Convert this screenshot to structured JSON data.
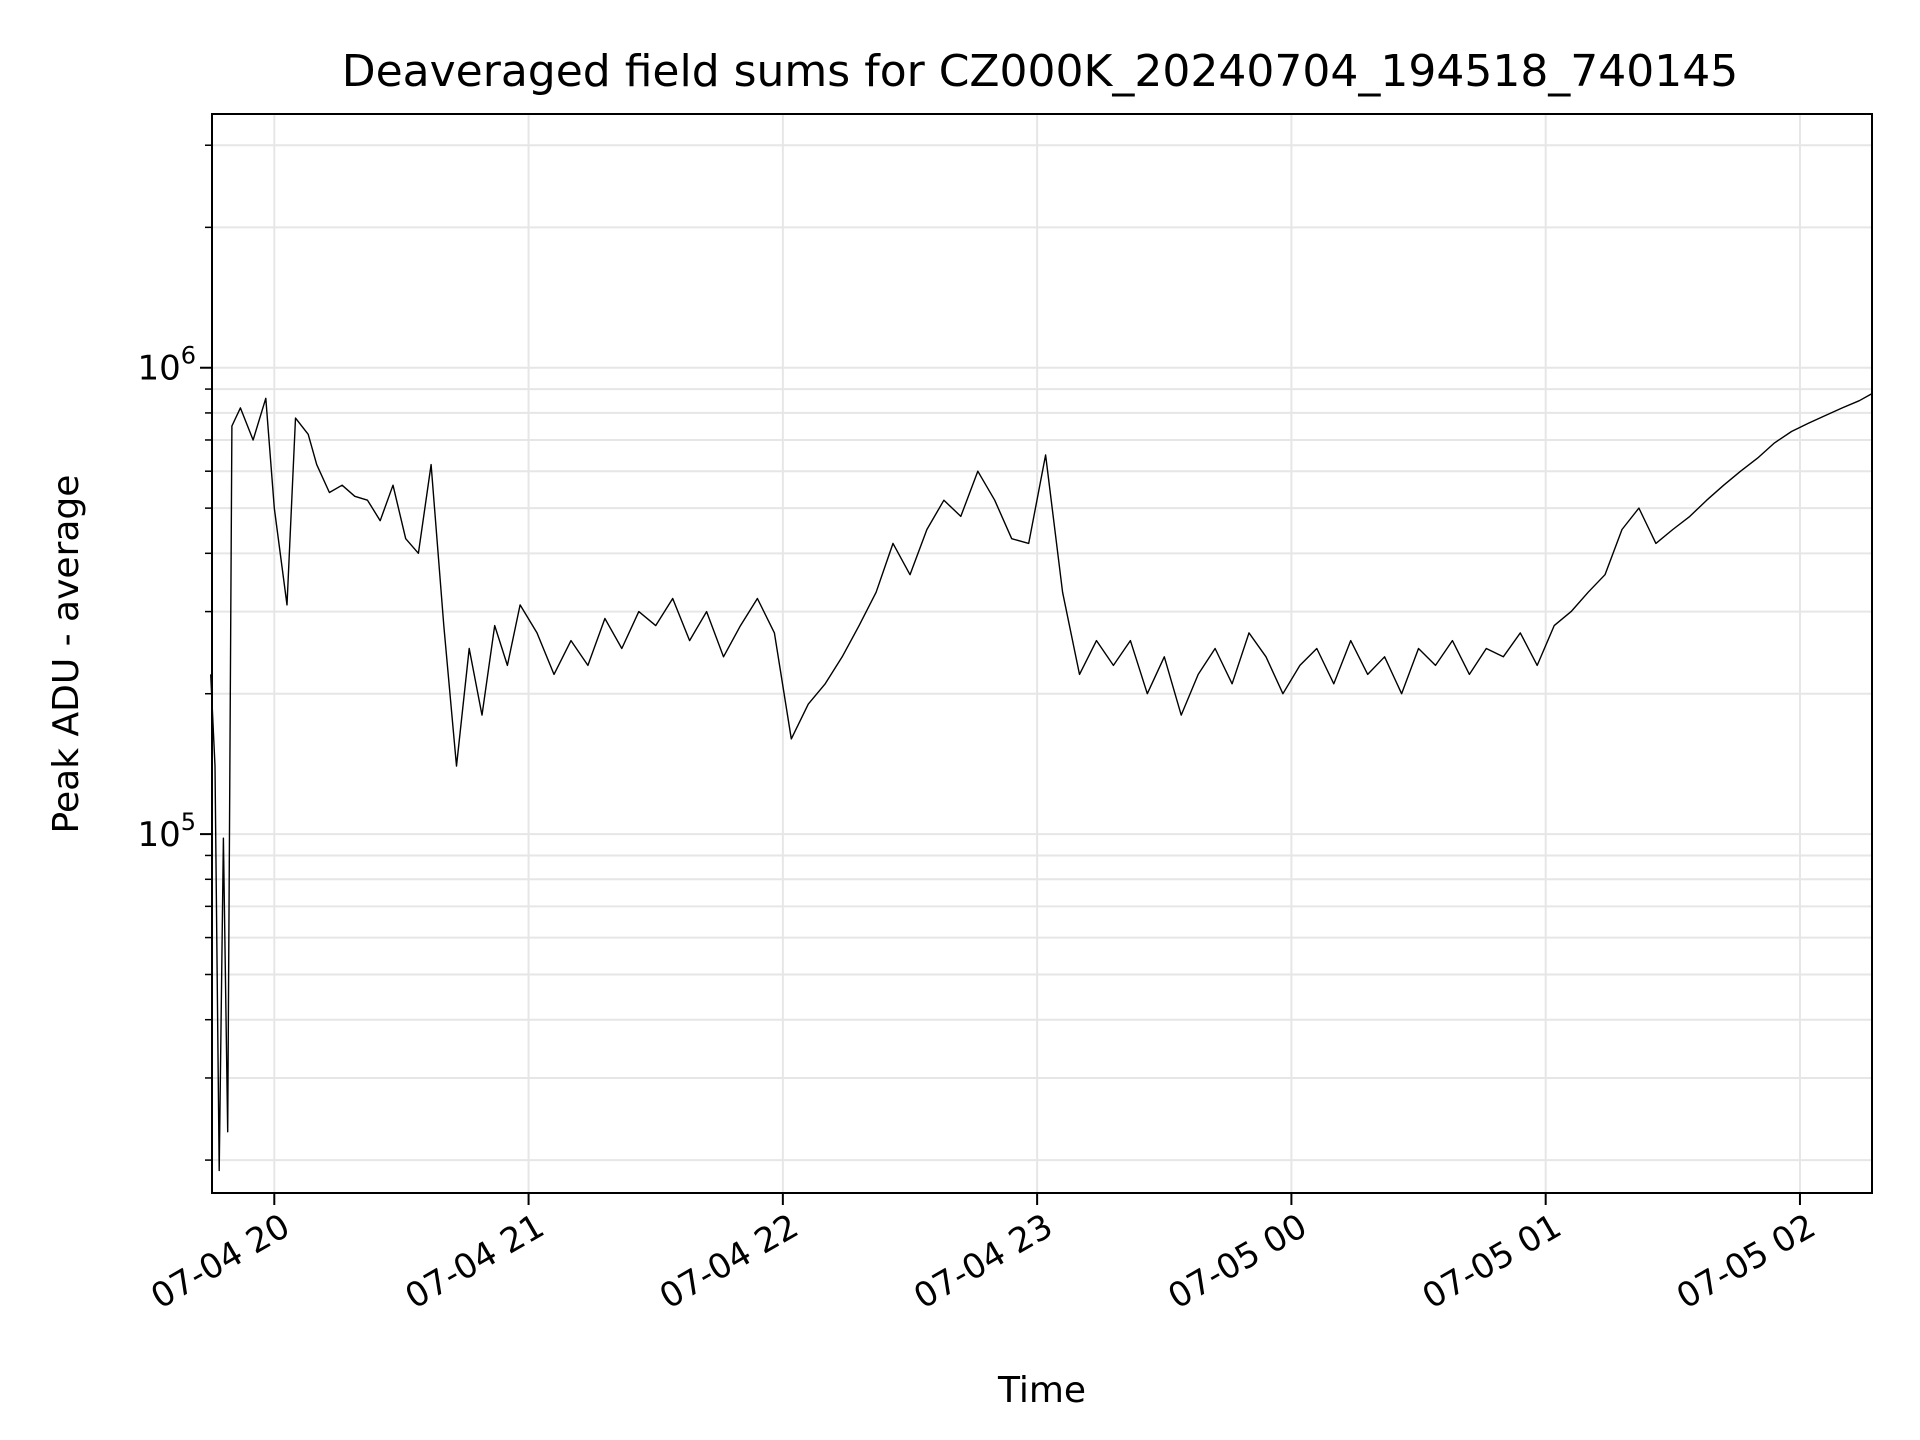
{
  "chart_data": {
    "type": "line",
    "title": "Deaveraged field sums for CZ000K_20240704_194518_740145",
    "xlabel": "Time",
    "ylabel": "Peak ADU - average",
    "yscale": "log",
    "xlim": [
      "2024-07-04 19:45:18",
      "2024-07-05 02:17:00"
    ],
    "ylim": [
      17000,
      3500000
    ],
    "grid": true,
    "line_color": "#000000",
    "x_ticks": [
      {
        "label": "07-04 20",
        "value": "2024-07-04 20:00"
      },
      {
        "label": "07-04 21",
        "value": "2024-07-04 21:00"
      },
      {
        "label": "07-04 22",
        "value": "2024-07-04 22:00"
      },
      {
        "label": "07-04 23",
        "value": "2024-07-04 23:00"
      },
      {
        "label": "07-05 00",
        "value": "2024-07-05 00:00"
      },
      {
        "label": "07-05 01",
        "value": "2024-07-05 01:00"
      },
      {
        "label": "07-05 02",
        "value": "2024-07-05 02:00"
      }
    ],
    "y_ticks": [
      {
        "base": "10",
        "exp": "5",
        "value": 100000
      },
      {
        "base": "10",
        "exp": "6",
        "value": 1000000
      }
    ],
    "series": [
      {
        "points": [
          [
            "2024-07-04 19:45",
            220000
          ],
          [
            "2024-07-04 19:46",
            140000
          ],
          [
            "2024-07-04 19:47",
            19000
          ],
          [
            "2024-07-04 19:48",
            98000
          ],
          [
            "2024-07-04 19:49",
            23000
          ],
          [
            "2024-07-04 19:50",
            750000
          ],
          [
            "2024-07-04 19:52",
            820000
          ],
          [
            "2024-07-04 19:55",
            700000
          ],
          [
            "2024-07-04 19:58",
            860000
          ],
          [
            "2024-07-04 20:00",
            500000
          ],
          [
            "2024-07-04 20:03",
            310000
          ],
          [
            "2024-07-04 20:05",
            780000
          ],
          [
            "2024-07-04 20:08",
            720000
          ],
          [
            "2024-07-04 20:10",
            620000
          ],
          [
            "2024-07-04 20:13",
            540000
          ],
          [
            "2024-07-04 20:16",
            560000
          ],
          [
            "2024-07-04 20:19",
            530000
          ],
          [
            "2024-07-04 20:22",
            520000
          ],
          [
            "2024-07-04 20:25",
            470000
          ],
          [
            "2024-07-04 20:28",
            560000
          ],
          [
            "2024-07-04 20:31",
            430000
          ],
          [
            "2024-07-04 20:34",
            400000
          ],
          [
            "2024-07-04 20:37",
            620000
          ],
          [
            "2024-07-04 20:40",
            280000
          ],
          [
            "2024-07-04 20:43",
            140000
          ],
          [
            "2024-07-04 20:46",
            250000
          ],
          [
            "2024-07-04 20:49",
            180000
          ],
          [
            "2024-07-04 20:52",
            280000
          ],
          [
            "2024-07-04 20:55",
            230000
          ],
          [
            "2024-07-04 20:58",
            310000
          ],
          [
            "2024-07-04 21:02",
            270000
          ],
          [
            "2024-07-04 21:06",
            220000
          ],
          [
            "2024-07-04 21:10",
            260000
          ],
          [
            "2024-07-04 21:14",
            230000
          ],
          [
            "2024-07-04 21:18",
            290000
          ],
          [
            "2024-07-04 21:22",
            250000
          ],
          [
            "2024-07-04 21:26",
            300000
          ],
          [
            "2024-07-04 21:30",
            280000
          ],
          [
            "2024-07-04 21:34",
            320000
          ],
          [
            "2024-07-04 21:38",
            260000
          ],
          [
            "2024-07-04 21:42",
            300000
          ],
          [
            "2024-07-04 21:46",
            240000
          ],
          [
            "2024-07-04 21:50",
            280000
          ],
          [
            "2024-07-04 21:54",
            320000
          ],
          [
            "2024-07-04 21:58",
            270000
          ],
          [
            "2024-07-04 22:02",
            160000
          ],
          [
            "2024-07-04 22:06",
            190000
          ],
          [
            "2024-07-04 22:10",
            210000
          ],
          [
            "2024-07-04 22:14",
            240000
          ],
          [
            "2024-07-04 22:18",
            280000
          ],
          [
            "2024-07-04 22:22",
            330000
          ],
          [
            "2024-07-04 22:26",
            420000
          ],
          [
            "2024-07-04 22:30",
            360000
          ],
          [
            "2024-07-04 22:34",
            450000
          ],
          [
            "2024-07-04 22:38",
            520000
          ],
          [
            "2024-07-04 22:42",
            480000
          ],
          [
            "2024-07-04 22:46",
            600000
          ],
          [
            "2024-07-04 22:50",
            520000
          ],
          [
            "2024-07-04 22:54",
            430000
          ],
          [
            "2024-07-04 22:58",
            420000
          ],
          [
            "2024-07-04 23:02",
            650000
          ],
          [
            "2024-07-04 23:06",
            330000
          ],
          [
            "2024-07-04 23:10",
            220000
          ],
          [
            "2024-07-04 23:14",
            260000
          ],
          [
            "2024-07-04 23:18",
            230000
          ],
          [
            "2024-07-04 23:22",
            260000
          ],
          [
            "2024-07-04 23:26",
            200000
          ],
          [
            "2024-07-04 23:30",
            240000
          ],
          [
            "2024-07-04 23:34",
            180000
          ],
          [
            "2024-07-04 23:38",
            220000
          ],
          [
            "2024-07-04 23:42",
            250000
          ],
          [
            "2024-07-04 23:46",
            210000
          ],
          [
            "2024-07-04 23:50",
            270000
          ],
          [
            "2024-07-04 23:54",
            240000
          ],
          [
            "2024-07-04 23:58",
            200000
          ],
          [
            "2024-07-05 00:02",
            230000
          ],
          [
            "2024-07-05 00:06",
            250000
          ],
          [
            "2024-07-05 00:10",
            210000
          ],
          [
            "2024-07-05 00:14",
            260000
          ],
          [
            "2024-07-05 00:18",
            220000
          ],
          [
            "2024-07-05 00:22",
            240000
          ],
          [
            "2024-07-05 00:26",
            200000
          ],
          [
            "2024-07-05 00:30",
            250000
          ],
          [
            "2024-07-05 00:34",
            230000
          ],
          [
            "2024-07-05 00:38",
            260000
          ],
          [
            "2024-07-05 00:42",
            220000
          ],
          [
            "2024-07-05 00:46",
            250000
          ],
          [
            "2024-07-05 00:50",
            240000
          ],
          [
            "2024-07-05 00:54",
            270000
          ],
          [
            "2024-07-05 00:58",
            230000
          ],
          [
            "2024-07-05 01:02",
            280000
          ],
          [
            "2024-07-05 01:06",
            300000
          ],
          [
            "2024-07-05 01:10",
            330000
          ],
          [
            "2024-07-05 01:14",
            360000
          ],
          [
            "2024-07-05 01:18",
            450000
          ],
          [
            "2024-07-05 01:22",
            500000
          ],
          [
            "2024-07-05 01:26",
            420000
          ],
          [
            "2024-07-05 01:30",
            450000
          ],
          [
            "2024-07-05 01:34",
            480000
          ],
          [
            "2024-07-05 01:38",
            520000
          ],
          [
            "2024-07-05 01:42",
            560000
          ],
          [
            "2024-07-05 01:46",
            600000
          ],
          [
            "2024-07-05 01:50",
            640000
          ],
          [
            "2024-07-05 01:54",
            690000
          ],
          [
            "2024-07-05 01:58",
            730000
          ],
          [
            "2024-07-05 02:02",
            760000
          ],
          [
            "2024-07-05 02:06",
            790000
          ],
          [
            "2024-07-05 02:10",
            820000
          ],
          [
            "2024-07-05 02:14",
            850000
          ],
          [
            "2024-07-05 02:17",
            880000
          ]
        ]
      }
    ]
  }
}
